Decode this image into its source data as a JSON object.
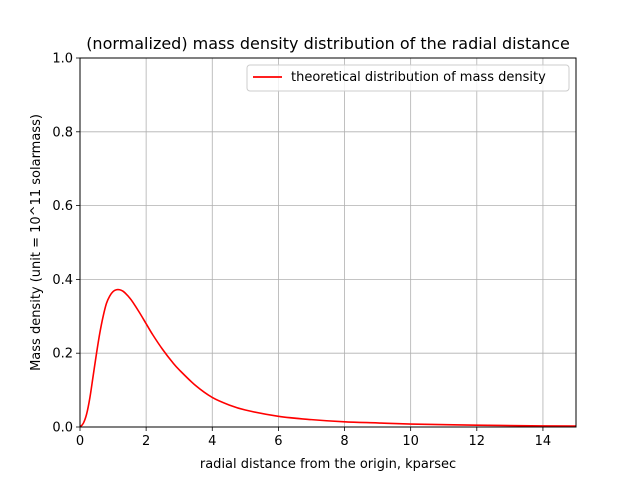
{
  "chart_data": {
    "type": "line",
    "title": "(normalized) mass density distribution of the radial distance",
    "xlabel": "radial distance from the origin, kparsec",
    "ylabel": "Mass density (unit = 10^11 solarmass)",
    "xlim": [
      0,
      15
    ],
    "ylim": [
      0,
      1.0
    ],
    "xticks": [
      0,
      2,
      4,
      6,
      8,
      10,
      12,
      14
    ],
    "yticks": [
      0.0,
      0.2,
      0.4,
      0.6,
      0.8,
      1.0
    ],
    "xtick_labels": [
      "0",
      "2",
      "4",
      "6",
      "8",
      "10",
      "12",
      "14"
    ],
    "ytick_labels": [
      "0.0",
      "0.2",
      "0.4",
      "0.6",
      "0.8",
      "1.0"
    ],
    "grid": true,
    "legend_position": "top-right",
    "series": [
      {
        "name": "theoretical distribution of mass density",
        "color": "#ff0000",
        "x": [
          0,
          0.1,
          0.2,
          0.3,
          0.4,
          0.5,
          0.6,
          0.7,
          0.8,
          0.9,
          1.0,
          1.1,
          1.2,
          1.3,
          1.4,
          1.5,
          1.6,
          1.8,
          2.0,
          2.2,
          2.5,
          2.8,
          3.0,
          3.5,
          4.0,
          4.5,
          5.0,
          6.0,
          7.0,
          8.0,
          9.0,
          10.0,
          12.0,
          14.0,
          15.0
        ],
        "y": [
          0.0,
          0.01,
          0.035,
          0.08,
          0.14,
          0.2,
          0.255,
          0.3,
          0.335,
          0.355,
          0.367,
          0.372,
          0.372,
          0.368,
          0.36,
          0.35,
          0.338,
          0.31,
          0.28,
          0.25,
          0.21,
          0.175,
          0.155,
          0.112,
          0.08,
          0.06,
          0.046,
          0.029,
          0.02,
          0.014,
          0.011,
          0.008,
          0.005,
          0.003,
          0.0025
        ]
      }
    ]
  }
}
